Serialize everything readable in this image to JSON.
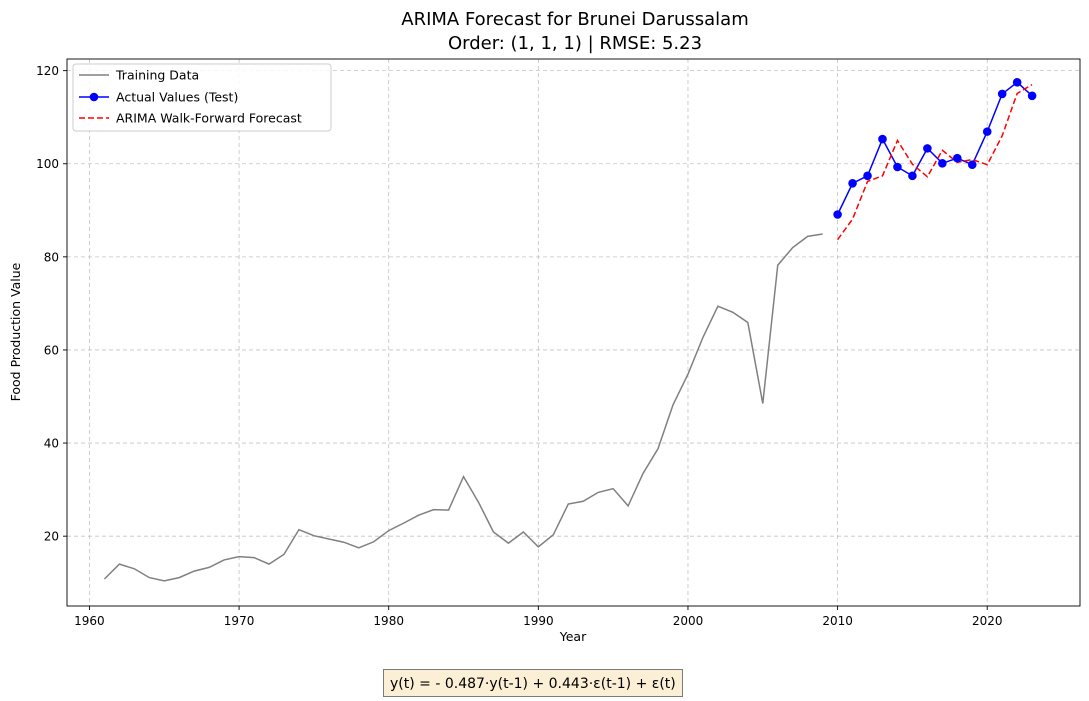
{
  "chart_data": {
    "type": "line",
    "title": "ARIMA Forecast for Brunei Darussalam",
    "subtitle": "Order: (1, 1, 1) | RMSE: 5.23",
    "xlabel": "Year",
    "ylabel": "Food Production Value",
    "xlim": [
      1958.5,
      2026.2
    ],
    "ylim": [
      5,
      122.5
    ],
    "xticks": [
      1960,
      1970,
      1980,
      1990,
      2000,
      2010,
      2020
    ],
    "yticks": [
      20,
      40,
      60,
      80,
      100,
      120
    ],
    "grid": true,
    "legend_position": "top-left",
    "series": [
      {
        "name": "Training Data",
        "color": "#808080",
        "style": "solid",
        "marker": "none",
        "x": [
          1961,
          1962,
          1963,
          1964,
          1965,
          1966,
          1967,
          1968,
          1969,
          1970,
          1971,
          1972,
          1973,
          1974,
          1975,
          1976,
          1977,
          1978,
          1979,
          1980,
          1981,
          1982,
          1983,
          1984,
          1985,
          1986,
          1987,
          1988,
          1989,
          1990,
          1991,
          1992,
          1993,
          1994,
          1995,
          1996,
          1997,
          1998,
          1999,
          2000,
          2001,
          2002,
          2003,
          2004,
          2005,
          2006,
          2007,
          2008,
          2009
        ],
        "values": [
          10.8,
          14.0,
          13.0,
          11.1,
          10.4,
          11.1,
          12.5,
          13.3,
          14.9,
          15.6,
          15.4,
          14.0,
          16.1,
          21.4,
          20.1,
          19.4,
          18.7,
          17.5,
          18.8,
          21.2,
          22.8,
          24.5,
          25.7,
          25.6,
          32.8,
          27.3,
          20.9,
          18.5,
          20.9,
          17.7,
          20.3,
          26.9,
          27.5,
          29.4,
          30.2,
          26.5,
          33.5,
          38.8,
          48.2,
          54.8,
          62.7,
          69.4,
          68.1,
          65.9,
          48.5,
          78.2,
          82.0,
          84.4,
          84.9
        ]
      },
      {
        "name": "Actual Values (Test)",
        "color": "#0000ff",
        "style": "solid",
        "marker": "circle",
        "x": [
          2010,
          2011,
          2012,
          2013,
          2014,
          2015,
          2016,
          2017,
          2018,
          2019,
          2020,
          2021,
          2022,
          2023
        ],
        "values": [
          89.1,
          95.8,
          97.4,
          105.3,
          99.3,
          97.4,
          103.3,
          100.1,
          101.2,
          99.8,
          106.9,
          115.0,
          117.5,
          114.6
        ]
      },
      {
        "name": "ARIMA Walk-Forward Forecast",
        "color": "#ff0000",
        "style": "dashed",
        "marker": "none",
        "x": [
          2010,
          2011,
          2012,
          2013,
          2014,
          2015,
          2016,
          2017,
          2018,
          2019,
          2020,
          2021,
          2022,
          2023
        ],
        "values": [
          83.7,
          88.1,
          96.2,
          97.4,
          105.0,
          99.9,
          97.2,
          102.9,
          100.3,
          100.9,
          99.8,
          106.0,
          115.1,
          117.0
        ]
      }
    ]
  },
  "equation": "y(t) = - 0.487·y(t-1) + 0.443·ε(t-1) + ε(t)"
}
